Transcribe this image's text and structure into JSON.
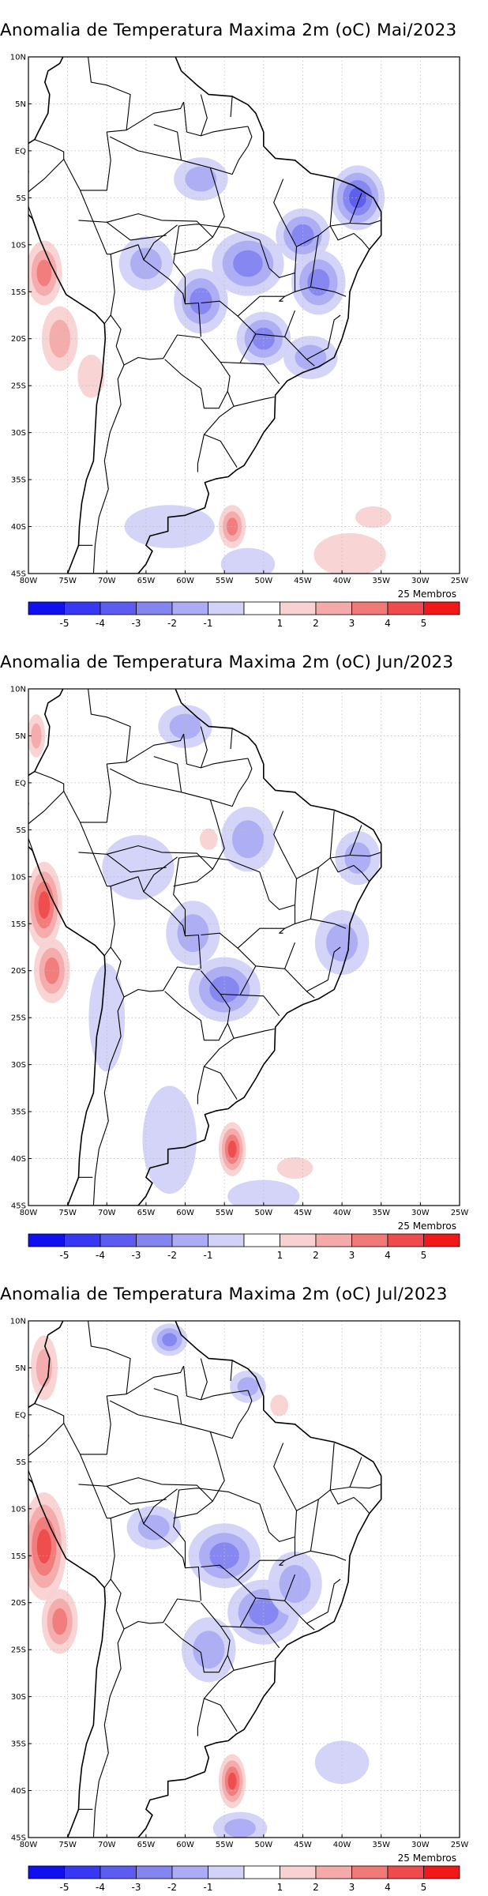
{
  "panels": [
    {
      "id": "mai",
      "title": "Anomalia de Temperatura Maxima 2m (oC) Mai/2023",
      "members_label": "25 Membros",
      "cold_anomalies": [
        {
          "lon": -38,
          "lat": -5,
          "level": 4,
          "rx": 3,
          "ry": 3
        },
        {
          "lon": -52,
          "lat": -12,
          "level": 3,
          "rx": 4,
          "ry": 3
        },
        {
          "lon": -58,
          "lat": -16,
          "level": 3,
          "rx": 3,
          "ry": 3
        },
        {
          "lon": -43,
          "lat": -14,
          "level": 3,
          "rx": 3,
          "ry": 3
        },
        {
          "lon": -45,
          "lat": -9,
          "level": 3,
          "rx": 3,
          "ry": 2.5
        },
        {
          "lon": -50,
          "lat": -20,
          "level": 3,
          "rx": 3,
          "ry": 2.5
        },
        {
          "lon": -58,
          "lat": -3,
          "level": 2,
          "rx": 3,
          "ry": 2
        },
        {
          "lon": -65,
          "lat": -12,
          "level": 2,
          "rx": 3,
          "ry": 2.5
        },
        {
          "lon": -44,
          "lat": -22,
          "level": 2,
          "rx": 3,
          "ry": 2
        },
        {
          "lon": -62,
          "lat": -40,
          "level": 1,
          "rx": 5,
          "ry": 2
        },
        {
          "lon": -52,
          "lat": -44,
          "level": 1,
          "rx": 3,
          "ry": 1.5
        }
      ],
      "warm_anomalies": [
        {
          "lon": -78,
          "lat": -13,
          "level": 3,
          "rx": 2,
          "ry": 3
        },
        {
          "lon": -76,
          "lat": -20,
          "level": 2,
          "rx": 2,
          "ry": 3
        },
        {
          "lon": -54,
          "lat": -40,
          "level": 3,
          "rx": 1.5,
          "ry": 2
        },
        {
          "lon": -39,
          "lat": -43,
          "level": 1,
          "rx": 4,
          "ry": 2
        },
        {
          "lon": -36,
          "lat": -39,
          "level": 1,
          "rx": 2,
          "ry": 1
        },
        {
          "lon": -72,
          "lat": -24,
          "level": 1,
          "rx": 1.5,
          "ry": 2
        }
      ]
    },
    {
      "id": "jun",
      "title": "Anomalia de Temperatura Maxima 2m (oC) Jun/2023",
      "members_label": "25 Membros",
      "cold_anomalies": [
        {
          "lon": -55,
          "lat": -22,
          "level": 3,
          "rx": 4,
          "ry": 3
        },
        {
          "lon": -59,
          "lat": -16,
          "level": 2,
          "rx": 3,
          "ry": 3
        },
        {
          "lon": -52,
          "lat": -6,
          "level": 2,
          "rx": 3,
          "ry": 3
        },
        {
          "lon": -60,
          "lat": 6,
          "level": 2,
          "rx": 3,
          "ry": 2
        },
        {
          "lon": -40,
          "lat": -17,
          "level": 2,
          "rx": 3,
          "ry": 3
        },
        {
          "lon": -38,
          "lat": -8,
          "level": 2,
          "rx": 2.5,
          "ry": 2.5
        },
        {
          "lon": -66,
          "lat": -9,
          "level": 1,
          "rx": 4,
          "ry": 3
        },
        {
          "lon": -62,
          "lat": -38,
          "level": 1,
          "rx": 3,
          "ry": 5
        },
        {
          "lon": -70,
          "lat": -25,
          "level": 1,
          "rx": 2,
          "ry": 5
        },
        {
          "lon": -50,
          "lat": -44,
          "level": 1,
          "rx": 4,
          "ry": 1.5
        }
      ],
      "warm_anomalies": [
        {
          "lon": -78,
          "lat": -13,
          "level": 4,
          "rx": 2,
          "ry": 4
        },
        {
          "lon": -77,
          "lat": -20,
          "level": 3,
          "rx": 2,
          "ry": 3
        },
        {
          "lon": -54,
          "lat": -39,
          "level": 4,
          "rx": 1.5,
          "ry": 2.5
        },
        {
          "lon": -79,
          "lat": 5,
          "level": 2,
          "rx": 1,
          "ry": 2
        },
        {
          "lon": -46,
          "lat": -41,
          "level": 1,
          "rx": 2,
          "ry": 1
        },
        {
          "lon": -57,
          "lat": -6,
          "level": 1,
          "rx": 1,
          "ry": 1
        }
      ]
    },
    {
      "id": "jul",
      "title": "Anomalia de Temperatura Maxima 2m (oC) Jul/2023",
      "members_label": "25 Membros",
      "cold_anomalies": [
        {
          "lon": -50,
          "lat": -21,
          "level": 3,
          "rx": 4,
          "ry": 3
        },
        {
          "lon": -55,
          "lat": -15,
          "level": 3,
          "rx": 4,
          "ry": 3
        },
        {
          "lon": -46,
          "lat": -18,
          "level": 2,
          "rx": 3,
          "ry": 3
        },
        {
          "lon": -62,
          "lat": 8,
          "level": 3,
          "rx": 2,
          "ry": 1.5
        },
        {
          "lon": -52,
          "lat": 3,
          "level": 2,
          "rx": 2,
          "ry": 1.5
        },
        {
          "lon": -57,
          "lat": -25,
          "level": 2,
          "rx": 3,
          "ry": 3
        },
        {
          "lon": -64,
          "lat": -12,
          "level": 2,
          "rx": 3,
          "ry": 2
        },
        {
          "lon": -40,
          "lat": -37,
          "level": 1,
          "rx": 3,
          "ry": 2
        },
        {
          "lon": -53,
          "lat": -44,
          "level": 2,
          "rx": 3,
          "ry": 1.5
        }
      ],
      "warm_anomalies": [
        {
          "lon": -78,
          "lat": -14,
          "level": 4,
          "rx": 2.5,
          "ry": 5
        },
        {
          "lon": -76,
          "lat": -22,
          "level": 3,
          "rx": 2,
          "ry": 3
        },
        {
          "lon": -54,
          "lat": -39,
          "level": 4,
          "rx": 1.5,
          "ry": 2.5
        },
        {
          "lon": -78,
          "lat": 5,
          "level": 2,
          "rx": 1.5,
          "ry": 3
        },
        {
          "lon": -48,
          "lat": 1,
          "level": 1,
          "rx": 1,
          "ry": 1
        }
      ]
    }
  ],
  "map": {
    "lon_range": [
      -80,
      -25
    ],
    "lat_range": [
      -45,
      10
    ],
    "lon_ticks": [
      "80W",
      "75W",
      "70W",
      "65W",
      "60W",
      "55W",
      "50W",
      "45W",
      "40W",
      "35W",
      "30W",
      "25W"
    ],
    "lat_ticks": [
      "10N",
      "5N",
      "EQ",
      "5S",
      "10S",
      "15S",
      "20S",
      "25S",
      "30S",
      "35S",
      "40S",
      "45S"
    ],
    "grid": "dotted"
  },
  "legend": {
    "labels": [
      "-5",
      "-4",
      "-3",
      "-2",
      "-1",
      "1",
      "2",
      "3",
      "4",
      "5"
    ],
    "colors": [
      "#1010ee",
      "#3838f2",
      "#5c5cf0",
      "#8585f0",
      "#acacf4",
      "#d2d2f8",
      "#ffffff",
      "#f8d2d2",
      "#f4aaaa",
      "#f07a7a",
      "#ee4c4c",
      "#f01818"
    ]
  }
}
